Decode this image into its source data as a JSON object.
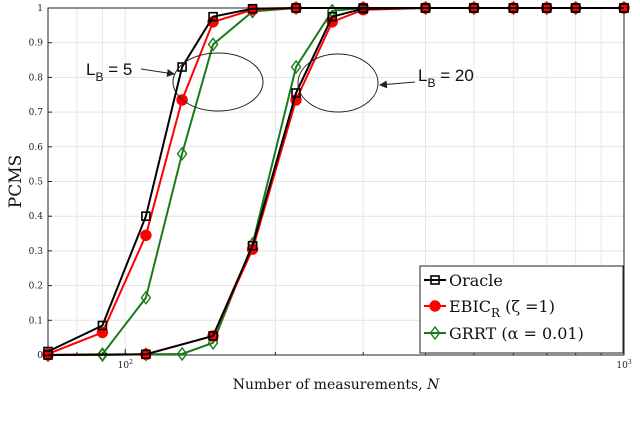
{
  "chart_data": {
    "type": "line",
    "xlabel": "Number of measurements, N",
    "xlabel_prefix": "Number of measurements, ",
    "xlabel_var": "N",
    "ylabel": "PCMS",
    "xscale": "log",
    "xlim": [
      70,
      1000
    ],
    "ylim": [
      0,
      1
    ],
    "grid": true,
    "legend_position": "bottom-right",
    "yticks": [
      "0",
      "0.1",
      "0.2",
      "0.3",
      "0.4",
      "0.5",
      "0.6",
      "0.7",
      "0.8",
      "0.9",
      "1"
    ],
    "xticks": [
      {
        "value": 100,
        "base": "10",
        "exp": "2"
      },
      {
        "value": 1000,
        "base": "10",
        "exp": "3"
      }
    ],
    "annotations": [
      {
        "text": "L",
        "sub": "B",
        "rest": " = 5"
      },
      {
        "text": "L",
        "sub": "B",
        "rest": " = 20"
      }
    ],
    "series": [
      {
        "name": "Oracle",
        "legend_main": "Oracle",
        "legend_sub": "",
        "legend_rest": "",
        "group": "LB=5",
        "color": "#000000",
        "marker": "square",
        "x": [
          70,
          90,
          110,
          130,
          150,
          180,
          220,
          300,
          400,
          500,
          600,
          700,
          800,
          1000
        ],
        "y": [
          0.01,
          0.085,
          0.4,
          0.83,
          0.975,
          0.998,
          1,
          1,
          1,
          1,
          1,
          1,
          1,
          1
        ]
      },
      {
        "name": "Oracle",
        "group": "LB=20",
        "color": "#000000",
        "marker": "square",
        "legend": false,
        "x": [
          70,
          110,
          150,
          180,
          220,
          260,
          300,
          400,
          500,
          600,
          700,
          800,
          1000
        ],
        "y": [
          0,
          0.002,
          0.055,
          0.315,
          0.755,
          0.975,
          0.998,
          1,
          1,
          1,
          1,
          1,
          1
        ]
      },
      {
        "name": "EBIC_R (ζ =1)",
        "legend_main": "EBIC",
        "legend_sub": "R",
        "legend_rest": " (ζ =1)",
        "group": "LB=5",
        "color": "#ff0000",
        "marker": "circle",
        "x": [
          70,
          90,
          110,
          130,
          150,
          180,
          220,
          300,
          400,
          500,
          600,
          700,
          800,
          1000
        ],
        "y": [
          0.003,
          0.065,
          0.345,
          0.735,
          0.96,
          0.995,
          1,
          1,
          1,
          1,
          1,
          1,
          1,
          1
        ]
      },
      {
        "name": "EBIC_R (ζ =1)",
        "group": "LB=20",
        "color": "#ff0000",
        "marker": "circle",
        "legend": false,
        "x": [
          70,
          110,
          150,
          180,
          220,
          260,
          300,
          400,
          500,
          600,
          700,
          800,
          1000
        ],
        "y": [
          0,
          0.002,
          0.055,
          0.305,
          0.735,
          0.96,
          0.995,
          1,
          1,
          1,
          1,
          1,
          1
        ]
      },
      {
        "name": "GRRT (α = 0.01)",
        "legend_main": "GRRT (α = 0.01)",
        "legend_sub": "",
        "legend_rest": "",
        "group": "LB=5",
        "color": "#1a7a1a",
        "marker": "diamond",
        "x": [
          70,
          90,
          110,
          130,
          150,
          180,
          220,
          300,
          400,
          500,
          600,
          700,
          800,
          1000
        ],
        "y": [
          0,
          0.002,
          0.165,
          0.58,
          0.895,
          0.99,
          1,
          1,
          1,
          1,
          1,
          1,
          1,
          1
        ]
      },
      {
        "name": "GRRT (α = 0.01)",
        "group": "LB=20",
        "color": "#1a7a1a",
        "marker": "diamond",
        "legend": false,
        "x": [
          70,
          90,
          110,
          130,
          150,
          180,
          220,
          260,
          300,
          400,
          500,
          600,
          700,
          800,
          1000
        ],
        "y": [
          0,
          0,
          0.002,
          0.003,
          0.035,
          0.32,
          0.83,
          0.992,
          1,
          1,
          1,
          1,
          1,
          1,
          1
        ]
      }
    ]
  }
}
